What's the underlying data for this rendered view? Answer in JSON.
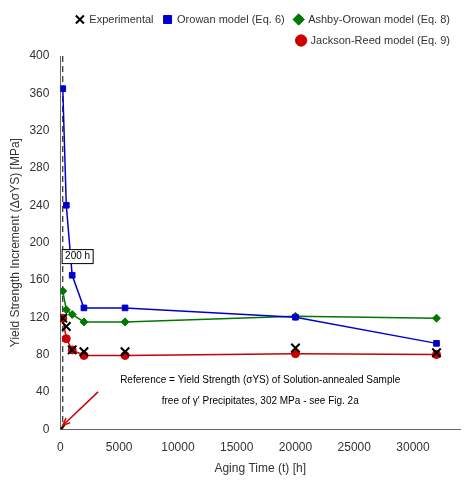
{
  "chart_data": {
    "type": "line",
    "xlabel": "Aging Time (t) [h]",
    "ylabel": "Yield Strength Increment (ΔσYS) [MPa]",
    "xlim": [
      0,
      34000
    ],
    "ylim": [
      0,
      400
    ],
    "xticks": [
      0,
      5000,
      10000,
      15000,
      20000,
      25000,
      30000
    ],
    "yticks": [
      0,
      40,
      80,
      120,
      160,
      200,
      240,
      280,
      320,
      360,
      400
    ],
    "grid": false,
    "legend": "upper right",
    "series": [
      {
        "name": "Experimental",
        "color": "#000000",
        "marker": "x",
        "line_style": "none",
        "x": [
          0,
          200,
          500,
          1000,
          2000,
          5500,
          20000,
          32000
        ],
        "values": [
          0,
          119,
          110,
          85,
          83,
          83,
          87,
          82
        ]
      },
      {
        "name": "Orowan model (Eq. 6)",
        "color": "#0000cc",
        "marker": "square",
        "line_style": "solid",
        "x": [
          200,
          500,
          1000,
          2000,
          5500,
          20000,
          32000
        ],
        "values": [
          365,
          240,
          165,
          130,
          130,
          120,
          92
        ]
      },
      {
        "name": "Ashby-Orowan model (Eq. 8)",
        "color": "#007700",
        "marker": "diamond",
        "line_style": "solid",
        "x": [
          200,
          500,
          1000,
          2000,
          5500,
          20000,
          32000
        ],
        "values": [
          148,
          128,
          123,
          115,
          115,
          121,
          119
        ]
      },
      {
        "name": "Jackson-Reed model (Eq. 9)",
        "color": "#cc0000",
        "marker": "circle",
        "line_style": "solid",
        "x": [
          200,
          500,
          1000,
          2000,
          5500,
          20000,
          32000
        ],
        "values": [
          119,
          97,
          85,
          79,
          79,
          81,
          80
        ]
      }
    ],
    "vlines": [
      {
        "x": 200,
        "color": "#000000",
        "line_style": "dashed"
      }
    ],
    "annotations": [
      {
        "text": "200 h",
        "x": 400,
        "y": 185,
        "align": "left"
      },
      {
        "text": "Reference = Yield Strength (σYS) of Solution-annealed Sample",
        "x": 17000,
        "y": 53,
        "align": "center"
      },
      {
        "text": "free of γ' Precipitates, 302 MPa - see Fig. 2a",
        "x": 17000,
        "y": 30,
        "align": "center"
      }
    ],
    "arrows": [
      {
        "from": [
          3200,
          40
        ],
        "to": [
          200,
          4
        ],
        "color": "#cc0000"
      }
    ]
  }
}
